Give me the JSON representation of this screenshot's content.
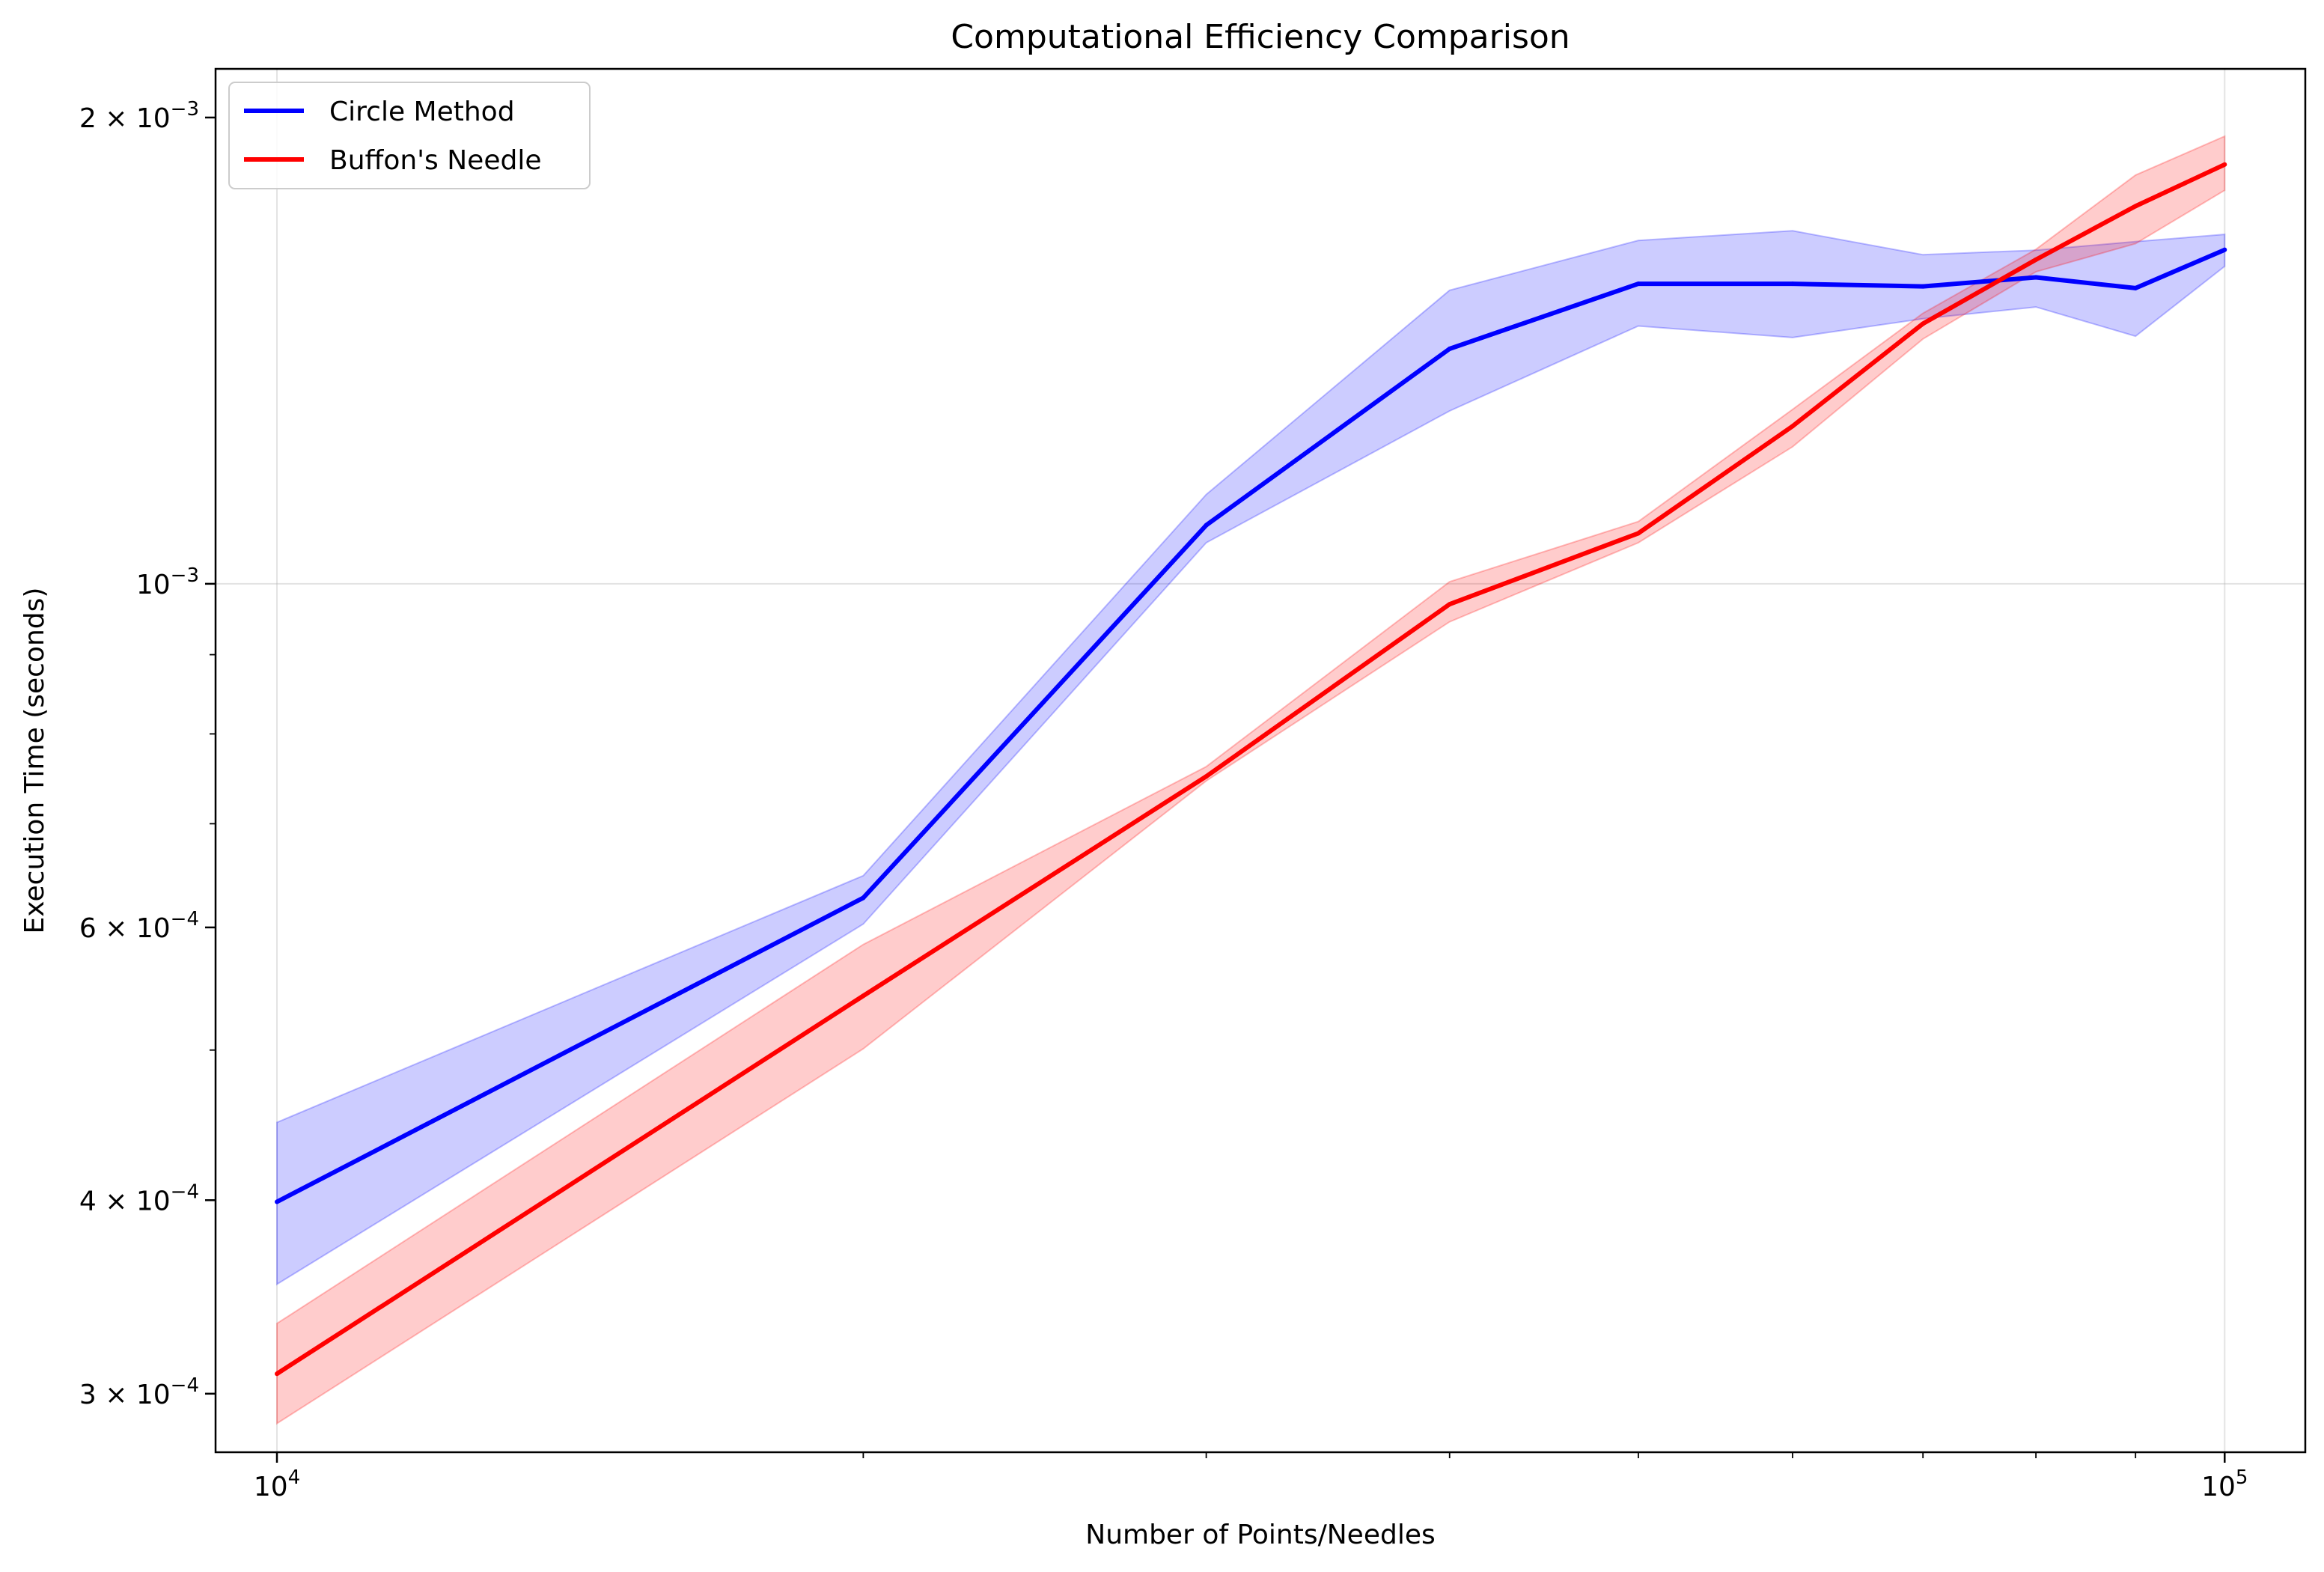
{
  "chart_data": {
    "type": "line",
    "title": "Computational Efficiency Comparison",
    "xlabel": "Number of Points/Needles",
    "ylabel": "Execution Time (seconds)",
    "x_scale": "log",
    "y_scale": "log",
    "xlim": [
      9300,
      110000
    ],
    "ylim": [
      0.000275,
      0.00215
    ],
    "grid": true,
    "legend_position": "top-left",
    "x_ticks": [
      {
        "value": 10000,
        "base": "10",
        "exp": "4"
      },
      {
        "value": 100000,
        "base": "10",
        "exp": "5"
      }
    ],
    "y_ticks": [
      {
        "value": 0.0003,
        "base": "3 × 10",
        "exp": "−4"
      },
      {
        "value": 0.0004,
        "base": "4 × 10",
        "exp": "−4"
      },
      {
        "value": 0.0006,
        "base": "6 × 10",
        "exp": "−4"
      },
      {
        "value": 0.001,
        "base": "10",
        "exp": "−3"
      },
      {
        "value": 0.002,
        "base": "2 × 10",
        "exp": "−3"
      }
    ],
    "x": [
      10000,
      20000,
      30000,
      40000,
      50000,
      60000,
      70000,
      80000,
      90000,
      100000
    ],
    "series": [
      {
        "name": "Circle Method",
        "color": "#0000ff",
        "band_color": "#0000ff",
        "values": [
          0.000399,
          0.000627,
          0.001091,
          0.001418,
          0.001562,
          0.001562,
          0.001556,
          0.001577,
          0.001552,
          0.001643
        ],
        "lower": [
          0.000353,
          0.000603,
          0.001063,
          0.001293,
          0.001467,
          0.001442,
          0.001483,
          0.001509,
          0.001445,
          0.001603
        ],
        "upper": [
          0.000449,
          0.000648,
          0.001142,
          0.001547,
          0.001666,
          0.00169,
          0.001631,
          0.001642,
          0.001663,
          0.001681
        ]
      },
      {
        "name": "Buffon's Needle",
        "color": "#ff0000",
        "band_color": "#ff0000",
        "values": [
          0.000309,
          0.000542,
          0.000751,
          0.00097,
          0.001078,
          0.001264,
          0.001472,
          0.001619,
          0.001753,
          0.001865
        ],
        "lower": [
          0.000287,
          0.000501,
          0.000746,
          0.000945,
          0.001063,
          0.001226,
          0.001439,
          0.00159,
          0.001658,
          0.001795
        ],
        "upper": [
          0.000333,
          0.000585,
          0.000762,
          0.001003,
          0.001097,
          0.001296,
          0.001495,
          0.001644,
          0.001836,
          0.001945
        ]
      }
    ]
  }
}
